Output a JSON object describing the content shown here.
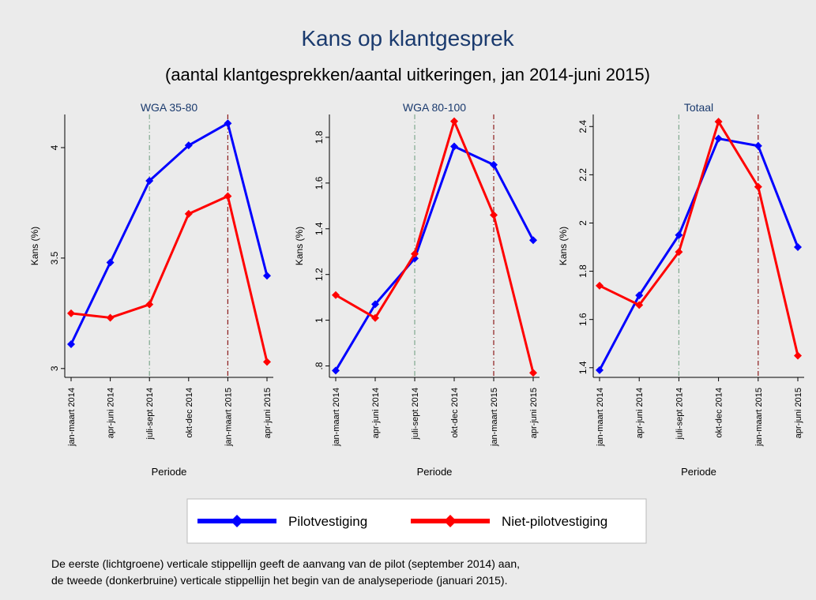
{
  "title": "Kans op klantgesprek",
  "subtitle": "(aantal klantgesprekken/aantal uitkeringen, jan 2014-juni 2015)",
  "note": [
    "De eerste (lichtgroene) verticale stippellijn geeft de aanvang van de pilot (september 2014) aan,",
    "de tweede (donkerbruine) verticale stippellijn het begin van de analyseperiode (januari 2015)."
  ],
  "chart_data": [
    {
      "type": "line",
      "title": "WGA 35-80",
      "xlabel": "Periode",
      "ylabel": "Kans (%)",
      "categories": [
        "jan-maart 2014",
        "apr-juni 2014",
        "juli-sept 2014",
        "okt-dec 2014",
        "jan-maart 2015",
        "apr-juni 2015"
      ],
      "series": [
        {
          "name": "Pilotvestiging",
          "color": "#0000ff",
          "values": [
            3.11,
            3.48,
            3.85,
            4.01,
            4.11,
            3.42
          ]
        },
        {
          "name": "Niet-pilotvestiging",
          "color": "#ff0000",
          "values": [
            3.25,
            3.23,
            3.29,
            3.7,
            3.78,
            3.03
          ]
        }
      ],
      "ylim": [
        2.96,
        4.15
      ],
      "yticks": [
        3,
        3.5,
        4
      ],
      "vlines": [
        {
          "index": 2,
          "color": "#7fa88e"
        },
        {
          "index": 4,
          "color": "#8b1a1a"
        }
      ]
    },
    {
      "type": "line",
      "title": "WGA 80-100",
      "xlabel": "Periode",
      "ylabel": "Kans (%)",
      "categories": [
        "jan-maart 2014",
        "apr-juni 2014",
        "juli-sept 2014",
        "okt-dec 2014",
        "jan-maart 2015",
        "apr-juni 2015"
      ],
      "series": [
        {
          "name": "Pilotvestiging",
          "color": "#0000ff",
          "values": [
            0.78,
            1.07,
            1.27,
            1.76,
            1.68,
            1.35
          ]
        },
        {
          "name": "Niet-pilotvestiging",
          "color": "#ff0000",
          "values": [
            1.11,
            1.01,
            1.29,
            1.87,
            1.46,
            0.77
          ]
        }
      ],
      "ylim": [
        0.75,
        1.9
      ],
      "yticks": [
        {
          "value": 0.8,
          "label": ".8"
        },
        1,
        1.2,
        1.4,
        1.6,
        1.8
      ],
      "vlines": [
        {
          "index": 2,
          "color": "#7fa88e"
        },
        {
          "index": 4,
          "color": "#8b1a1a"
        }
      ]
    },
    {
      "type": "line",
      "title": "Totaal",
      "xlabel": "Periode",
      "ylabel": "Kans (%)",
      "categories": [
        "jan-maart 2014",
        "apr-juni 2014",
        "juli-sept 2014",
        "okt-dec 2014",
        "jan-maart 2015",
        "apr-juni 2015"
      ],
      "series": [
        {
          "name": "Pilotvestiging",
          "color": "#0000ff",
          "values": [
            1.39,
            1.7,
            1.95,
            2.35,
            2.32,
            1.9
          ]
        },
        {
          "name": "Niet-pilotvestiging",
          "color": "#ff0000",
          "values": [
            1.74,
            1.66,
            1.88,
            2.42,
            2.15,
            1.45
          ]
        }
      ],
      "ylim": [
        1.36,
        2.45
      ],
      "yticks": [
        1.4,
        1.6,
        1.8,
        2,
        2.2,
        2.4
      ],
      "vlines": [
        {
          "index": 2,
          "color": "#7fa88e"
        },
        {
          "index": 4,
          "color": "#8b1a1a"
        }
      ]
    }
  ]
}
